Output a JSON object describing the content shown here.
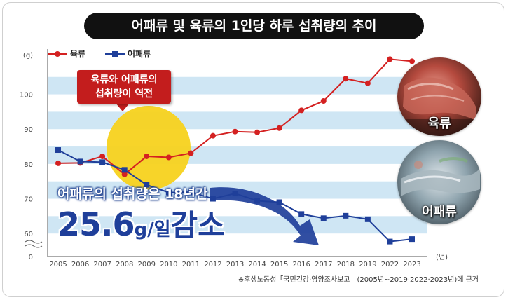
{
  "title": "어패류 및 육류의 1인당 하루 섭취량의 추이",
  "callout": {
    "line1": "육류와 어패류의",
    "line2": "섭취량이 역전"
  },
  "subtext": "어패류의 섭취량은 18년간",
  "big_stat": {
    "number": "25.6",
    "unit": "g/일",
    "word": "감소"
  },
  "photos": {
    "meat_label": "육류",
    "fish_label": "어패류"
  },
  "source_note": "※후생노동성「국민건강·영양조사보고」(2005년~2019·2022·2023년)에 근거",
  "colors": {
    "meat": "#d42121",
    "fish": "#1f3f9a",
    "band": "#cfe6f4",
    "title_bg": "#111111",
    "callout": "#c31d1d",
    "circle": "#f7d21e"
  },
  "chart_data": {
    "type": "line",
    "y_unit_label": "(g)",
    "x_unit_label": "(년)",
    "categories": [
      "2005",
      "2006",
      "2007",
      "2008",
      "2009",
      "2010",
      "2011",
      "2012",
      "2013",
      "2014",
      "2015",
      "2016",
      "2017",
      "2018",
      "2019",
      "2022",
      "2023"
    ],
    "series": [
      {
        "name": "육류",
        "values": [
          80.2,
          80.3,
          82.2,
          77.0,
          82.2,
          81.9,
          83.1,
          88.1,
          89.3,
          89.1,
          90.3,
          95.4,
          98.1,
          104.5,
          103.2,
          110.1,
          109.5
        ]
      },
      {
        "name": "어패류",
        "values": [
          84.0,
          80.7,
          80.5,
          78.3,
          74.0,
          71.8,
          71.9,
          70.0,
          71.5,
          69.4,
          69.0,
          65.6,
          64.4,
          65.1,
          64.1,
          57.7,
          58.4
        ]
      }
    ],
    "yticks": [
      60,
      70,
      80,
      90,
      100
    ],
    "ybase_label": "0",
    "ylim": [
      55,
      112
    ],
    "legend": "top-left",
    "grid": "bands"
  }
}
